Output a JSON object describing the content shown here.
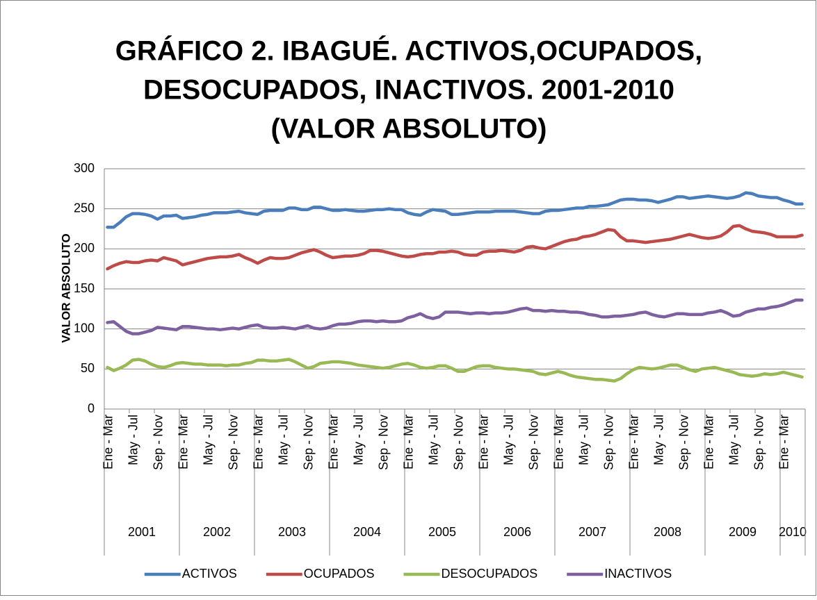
{
  "chart_data": {
    "type": "line",
    "title": [
      "GRÁFICO 2. IBAGUÉ. ACTIVOS,OCUPADOS,",
      "DESOCUPADOS, INACTIVOS. 2001-2010",
      "(VALOR ABSOLUTO)"
    ],
    "y_label": "VALOR  ABSOLUTO",
    "categories": [
      "Ene - Mar",
      null,
      null,
      null,
      "May - Jul",
      null,
      null,
      null,
      "Sep - Nov",
      null,
      null,
      null,
      "Ene - Mar",
      null,
      null,
      null,
      "May - Jul",
      null,
      null,
      null,
      "Sep - Nov",
      null,
      null,
      null,
      "Ene - Mar",
      null,
      null,
      null,
      "May - Jul",
      null,
      null,
      null,
      "Sep - Nov",
      null,
      null,
      null,
      "Ene - Mar",
      null,
      null,
      null,
      "May - Jul",
      null,
      null,
      null,
      "Sep - Nov",
      null,
      null,
      null,
      "Ene - Mar",
      null,
      null,
      null,
      "May - Jul",
      null,
      null,
      null,
      "Sep - Nov",
      null,
      null,
      null,
      "Ene - Mar",
      null,
      null,
      null,
      "May - Jul",
      null,
      null,
      null,
      "Sep - Nov",
      null,
      null,
      null,
      "Ene - Mar",
      null,
      null,
      null,
      "May - Jul",
      null,
      null,
      null,
      "Sep - Nov",
      null,
      null,
      null,
      "Ene - Mar",
      null,
      null,
      null,
      "May - Jul",
      null,
      null,
      null,
      "Sep - Nov",
      null,
      null,
      null,
      "Ene - Mar",
      null,
      null,
      null,
      "May - Jul",
      null,
      null,
      null,
      "Sep - Nov",
      null,
      null,
      null,
      "Ene - Mar",
      null,
      null,
      null
    ],
    "years": [
      "2001",
      null,
      null,
      null,
      null,
      null,
      null,
      null,
      null,
      null,
      null,
      null,
      "2002",
      null,
      null,
      null,
      null,
      null,
      null,
      null,
      null,
      null,
      null,
      null,
      "2003",
      null,
      null,
      null,
      null,
      null,
      null,
      null,
      null,
      null,
      null,
      null,
      "2004",
      null,
      null,
      null,
      null,
      null,
      null,
      null,
      null,
      null,
      null,
      null,
      "2005",
      null,
      null,
      null,
      null,
      null,
      null,
      null,
      null,
      null,
      null,
      null,
      "2006",
      null,
      null,
      null,
      null,
      null,
      null,
      null,
      null,
      null,
      null,
      null,
      "2007",
      null,
      null,
      null,
      null,
      null,
      null,
      null,
      null,
      null,
      null,
      null,
      "2008",
      null,
      null,
      null,
      null,
      null,
      null,
      null,
      null,
      null,
      null,
      null,
      "2009",
      null,
      null,
      null,
      null,
      null,
      null,
      null,
      null,
      null,
      null,
      null,
      "2010",
      null,
      null,
      null
    ],
    "series": [
      {
        "name": "ACTIVOS",
        "color": "#4a7ebb",
        "values": [
          227,
          227,
          233,
          240,
          244,
          244,
          243,
          241,
          237,
          241,
          241,
          242,
          238,
          239,
          240,
          242,
          243,
          245,
          245,
          245,
          246,
          247,
          245,
          244,
          243,
          247,
          248,
          248,
          248,
          251,
          251,
          249,
          249,
          252,
          252,
          250,
          248,
          248,
          249,
          248,
          247,
          247,
          248,
          249,
          249,
          250,
          249,
          249,
          245,
          243,
          242,
          246,
          249,
          248,
          247,
          243,
          243,
          244,
          245,
          246,
          246,
          246,
          247,
          247,
          247,
          247,
          246,
          245,
          244,
          244,
          247,
          248,
          248,
          249,
          250,
          251,
          251,
          253,
          253,
          254,
          255,
          258,
          261,
          262,
          262,
          261,
          261,
          260,
          258,
          260,
          262,
          265,
          265,
          263,
          264,
          265,
          266,
          265,
          264,
          263,
          264,
          266,
          270,
          269,
          266,
          265,
          264,
          264,
          261,
          259,
          256,
          256
        ]
      },
      {
        "name": "OCUPADOS",
        "color": "#be4b48",
        "values": [
          175,
          179,
          182,
          184,
          183,
          183,
          185,
          186,
          185,
          189,
          187,
          185,
          180,
          182,
          184,
          186,
          188,
          189,
          190,
          190,
          191,
          193,
          189,
          186,
          182,
          186,
          189,
          188,
          188,
          189,
          192,
          195,
          197,
          199,
          196,
          192,
          189,
          190,
          191,
          191,
          192,
          194,
          198,
          198,
          197,
          195,
          193,
          191,
          190,
          191,
          193,
          194,
          194,
          196,
          196,
          197,
          196,
          193,
          192,
          192,
          196,
          197,
          197,
          198,
          197,
          196,
          198,
          202,
          203,
          201,
          200,
          203,
          206,
          209,
          211,
          212,
          215,
          216,
          218,
          221,
          224,
          223,
          215,
          210,
          210,
          209,
          208,
          209,
          210,
          211,
          212,
          214,
          216,
          218,
          216,
          214,
          213,
          214,
          216,
          221,
          228,
          229,
          225,
          222,
          221,
          220,
          218,
          215,
          215,
          215,
          215,
          217
        ]
      },
      {
        "name": "DESOCUPADOS",
        "color": "#98b954",
        "values": [
          52,
          48,
          51,
          55,
          61,
          62,
          60,
          56,
          53,
          52,
          54,
          57,
          58,
          57,
          56,
          56,
          55,
          55,
          55,
          54,
          55,
          55,
          57,
          58,
          61,
          61,
          60,
          60,
          61,
          62,
          59,
          55,
          51,
          53,
          57,
          58,
          59,
          59,
          58,
          57,
          55,
          54,
          53,
          52,
          51,
          52,
          54,
          56,
          57,
          55,
          52,
          51,
          52,
          54,
          54,
          51,
          47,
          47,
          50,
          53,
          54,
          54,
          52,
          51,
          50,
          50,
          49,
          48,
          47,
          44,
          43,
          45,
          47,
          45,
          42,
          40,
          39,
          38,
          37,
          37,
          36,
          35,
          38,
          44,
          49,
          52,
          51,
          50,
          51,
          53,
          55,
          55,
          52,
          49,
          47,
          50,
          51,
          52,
          50,
          48,
          46,
          43,
          42,
          41,
          42,
          44,
          43,
          44,
          46,
          44,
          42,
          40
        ]
      },
      {
        "name": "INACTIVOS",
        "color": "#7d60a0",
        "values": [
          108,
          109,
          103,
          97,
          94,
          94,
          96,
          98,
          102,
          101,
          100,
          99,
          103,
          103,
          102,
          101,
          100,
          100,
          99,
          100,
          101,
          100,
          102,
          104,
          105,
          102,
          101,
          101,
          102,
          101,
          100,
          102,
          104,
          101,
          100,
          101,
          104,
          106,
          106,
          107,
          109,
          110,
          110,
          109,
          110,
          109,
          109,
          110,
          114,
          116,
          119,
          115,
          113,
          115,
          121,
          121,
          121,
          120,
          119,
          120,
          120,
          119,
          120,
          120,
          121,
          123,
          125,
          126,
          123,
          123,
          122,
          123,
          122,
          122,
          121,
          121,
          120,
          118,
          117,
          115,
          115,
          116,
          116,
          117,
          118,
          120,
          121,
          118,
          116,
          115,
          117,
          119,
          119,
          118,
          118,
          118,
          120,
          121,
          123,
          120,
          116,
          117,
          121,
          123,
          125,
          125,
          127,
          128,
          130,
          133,
          136,
          136
        ]
      }
    ],
    "ylim": [
      0,
      300
    ],
    "yticks": [
      0,
      50,
      100,
      150,
      200,
      250,
      300
    ],
    "grid": true,
    "legend": "bottom"
  }
}
